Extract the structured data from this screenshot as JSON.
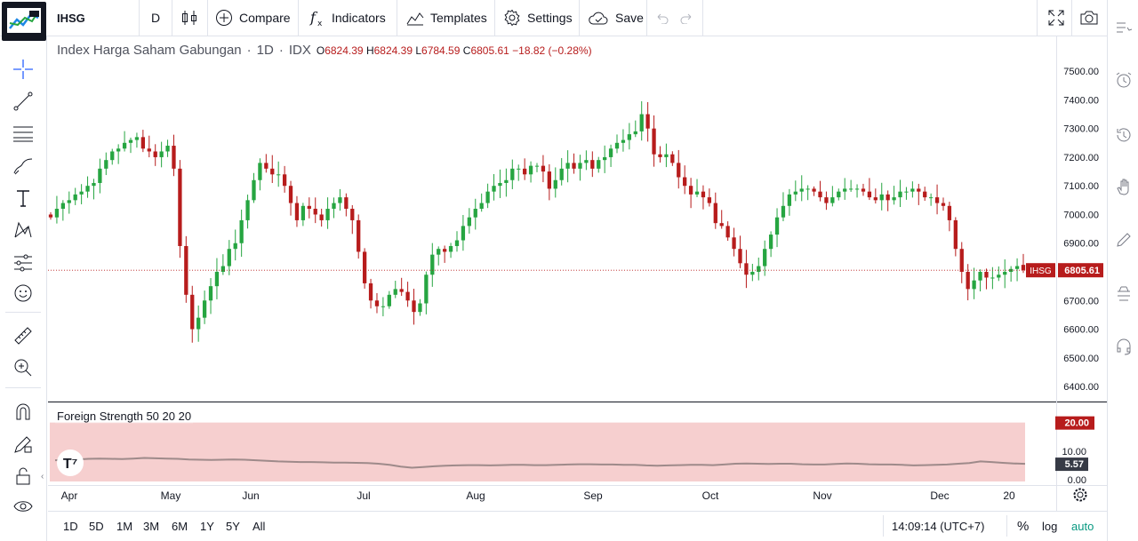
{
  "toolbar": {
    "symbol": "IHSG",
    "interval": "D",
    "compare_label": "Compare",
    "indicators_label": "Indicators",
    "templates_label": "Templates",
    "settings_label": "Settings",
    "save_label": "Save"
  },
  "legend": {
    "name": "Index Harga Saham Gabungan",
    "interval": "1D",
    "exchange": "IDX",
    "open_label": "O",
    "open": "6824.39",
    "high_label": "H",
    "high": "6824.39",
    "low_label": "L",
    "low": "6784.59",
    "close_label": "C",
    "close": "6805.61",
    "change": "−18.82 (−0.28%)"
  },
  "indicator": {
    "label": "Foreign Strength 50 20 20",
    "value_label": "5.57",
    "upper_label": "20.00"
  },
  "price_tag": {
    "symbol": "IHSG",
    "value": "6805.61"
  },
  "bottom": {
    "periods": [
      "1D",
      "5D",
      "1M",
      "3M",
      "6M",
      "1Y",
      "5Y",
      "All"
    ],
    "clock": "14:09:14 (UTC+7)",
    "percent": "%",
    "log": "log",
    "auto": "auto"
  },
  "colors": {
    "up": "#26a541",
    "down": "#b71c1c",
    "band": "#f5c7c7",
    "line": "#9e8a8a"
  },
  "chart_data": {
    "type": "candlestick",
    "price_axis": {
      "ylim": [
        6350,
        7550
      ],
      "ticks": [
        "7500.00",
        "7400.00",
        "7300.00",
        "7200.00",
        "7100.00",
        "7000.00",
        "6900.00",
        "6800.00",
        "6700.00",
        "6600.00",
        "6500.00",
        "6400.00"
      ]
    },
    "indicator_axis": {
      "ylim": [
        0,
        23
      ],
      "ticks": [
        "10.00",
        "0.00"
      ]
    },
    "x_tick_labels": [
      "Apr",
      "May",
      "Jun",
      "Jul",
      "Aug",
      "Sep",
      "Oct",
      "Nov",
      "Dec",
      "20"
    ],
    "last_price": 6805.61,
    "close_series": [
      6990,
      7020,
      7040,
      7050,
      7070,
      7080,
      7100,
      7110,
      7160,
      7190,
      7220,
      7230,
      7250,
      7260,
      7270,
      7230,
      7220,
      7200,
      7220,
      7240,
      7160,
      6890,
      6720,
      6600,
      6640,
      6700,
      6750,
      6800,
      6820,
      6880,
      6900,
      6980,
      7050,
      7120,
      7180,
      7160,
      7140,
      7140,
      7100,
      7040,
      6980,
      7030,
      7020,
      7000,
      6980,
      7020,
      7040,
      7060,
      7020,
      6980,
      6870,
      6760,
      6700,
      6680,
      6680,
      6720,
      6740,
      6730,
      6700,
      6660,
      6690,
      6790,
      6860,
      6880,
      6870,
      6890,
      6910,
      6960,
      6990,
      7020,
      7040,
      7080,
      7100,
      7110,
      7120,
      7160,
      7160,
      7140,
      7170,
      7170,
      7150,
      7090,
      7120,
      7160,
      7180,
      7160,
      7180,
      7190,
      7160,
      7190,
      7200,
      7230,
      7250,
      7260,
      7280,
      7290,
      7350,
      7300,
      7210,
      7200,
      7210,
      7180,
      7130,
      7100,
      7070,
      7080,
      7060,
      7040,
      6970,
      6960,
      6920,
      6880,
      6830,
      6790,
      6800,
      6820,
      6880,
      6930,
      6990,
      7030,
      7070,
      7080,
      7090,
      7090,
      7080,
      7060,
      7040,
      7060,
      7080,
      7090,
      7090,
      7090,
      7080,
      7060,
      7050,
      7070,
      7050,
      7060,
      7080,
      7080,
      7090,
      7080,
      7060,
      7060,
      7040,
      7030,
      6980,
      6880,
      6800,
      6740,
      6770,
      6800,
      6780,
      6780,
      6790,
      6800,
      6810,
      6820,
      6805.61
    ],
    "foreign_strength": [
      6.8,
      7.0,
      7.1,
      7.3,
      7.4,
      7.3,
      7.2,
      7.4,
      7.6,
      7.5,
      7.4,
      7.3,
      7.1,
      7.0,
      6.9,
      7.0,
      7.1,
      7.0,
      6.8,
      6.6,
      6.4,
      6.3,
      6.2,
      6.2,
      6.1,
      6.0,
      6.0,
      5.9,
      5.8,
      5.6,
      5.2,
      4.6,
      4.2,
      4.4,
      4.7,
      4.9,
      5.0,
      5.1,
      5.1,
      5.0,
      5.1,
      5.2,
      5.2,
      5.1,
      5.1,
      5.2,
      5.3,
      5.4,
      5.4,
      5.3,
      5.3,
      5.2,
      5.2,
      5.0,
      4.9,
      5.0,
      5.1,
      5.2,
      5.2,
      5.1,
      5.3,
      5.6,
      5.7,
      5.6,
      5.5,
      5.6,
      5.6,
      5.4,
      5.3,
      5.3,
      5.5,
      5.7,
      5.6,
      5.4,
      5.3,
      5.3,
      5.2,
      5.0,
      5.1,
      5.2,
      5.3,
      5.6,
      5.8,
      6.4,
      6.2,
      5.9,
      5.7,
      5.57
    ]
  }
}
